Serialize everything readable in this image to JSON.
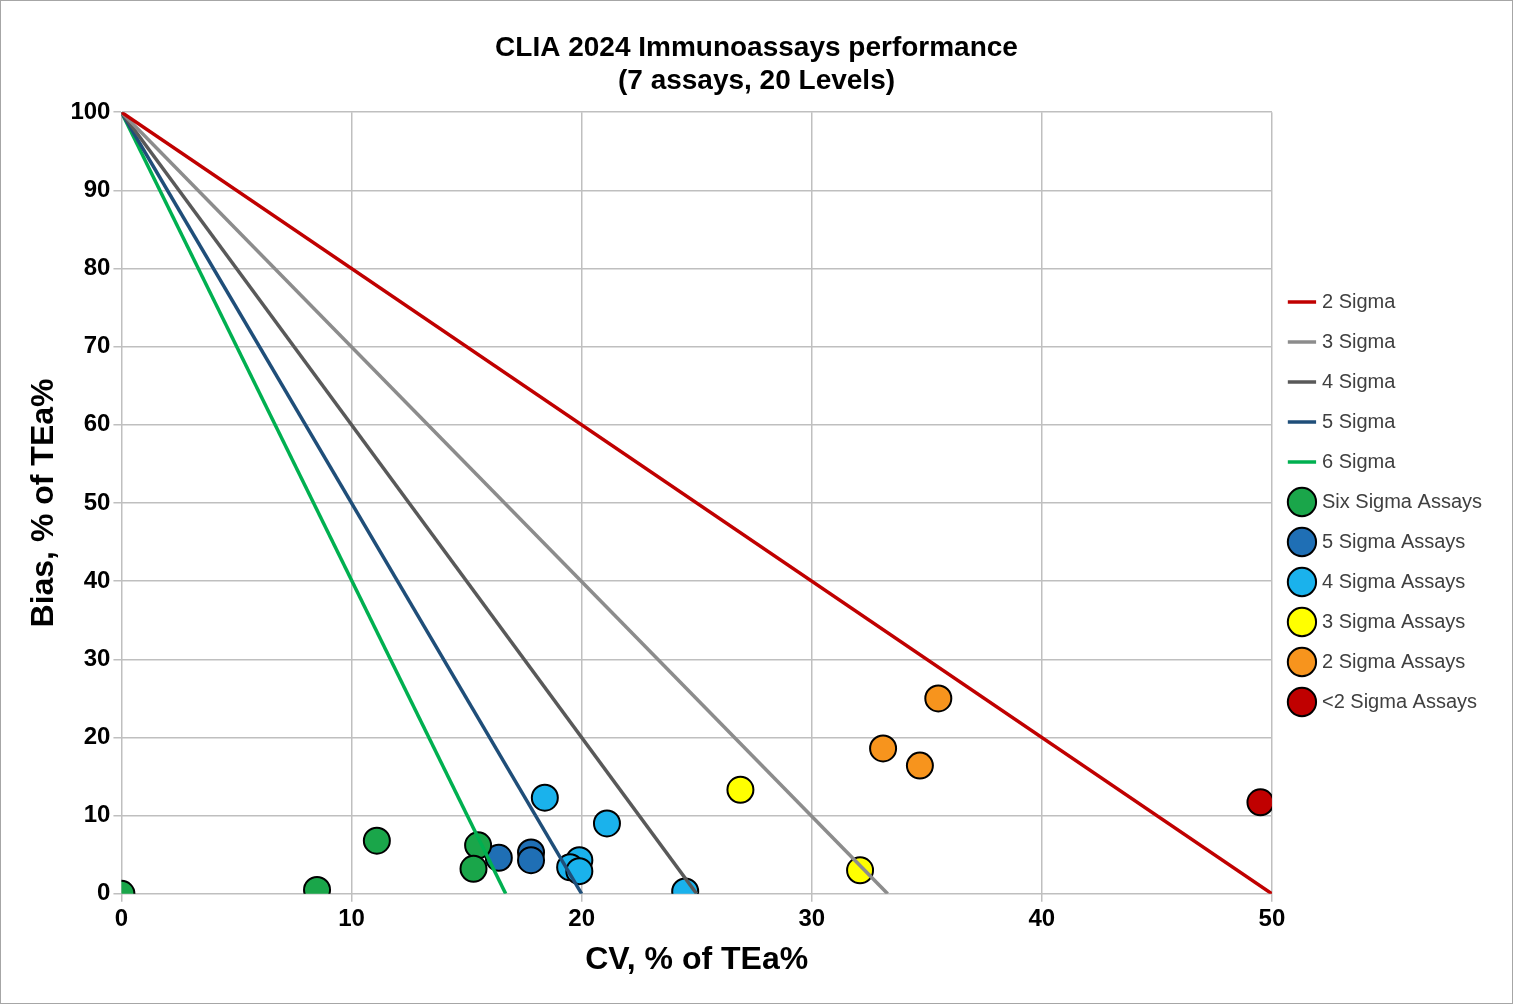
{
  "chart_data": {
    "type": "scatter",
    "title": [
      "CLIA 2024 Immunoassays performance",
      "(7 assays, 20 Levels)"
    ],
    "x_label": "CV, % of TEa%",
    "y_label": "Bias, % of TEa%",
    "xlim": [
      0,
      50
    ],
    "xticks": [
      0,
      10,
      20,
      30,
      40,
      50
    ],
    "ylim": [
      0,
      100
    ],
    "yticks": [
      0,
      10,
      20,
      30,
      40,
      50,
      60,
      70,
      80,
      90,
      100
    ],
    "grid": true,
    "legend": "right",
    "series": [
      {
        "name": "2 Sigma",
        "type": "line",
        "line_style": "solid",
        "color": "#c00000",
        "x": [
          0,
          50
        ],
        "values": [
          100,
          0
        ]
      },
      {
        "name": "3 Sigma",
        "type": "line",
        "line_style": "solid",
        "color": "#8c8c8c",
        "x": [
          0,
          33.3
        ],
        "values": [
          100,
          0
        ]
      },
      {
        "name": "4 Sigma",
        "type": "line",
        "line_style": "solid",
        "color": "#595959",
        "x": [
          0,
          25
        ],
        "values": [
          100,
          0
        ]
      },
      {
        "name": "5 Sigma",
        "type": "line",
        "line_style": "solid",
        "color": "#1f4e79",
        "x": [
          0,
          20
        ],
        "values": [
          100,
          0
        ]
      },
      {
        "name": "6 Sigma",
        "type": "line",
        "line_style": "solid",
        "color": "#00b050",
        "x": [
          0,
          16.7
        ],
        "values": [
          100,
          0
        ]
      },
      {
        "name": "Six Sigma Assays",
        "type": "scatter",
        "marker": "circle",
        "color": "#1aa64a",
        "x": [
          0,
          8.5,
          11.1,
          15.5,
          15.3
        ],
        "values": [
          0,
          0.5,
          6.8,
          6.2,
          3.2
        ]
      },
      {
        "name": "5 Sigma Assays",
        "type": "scatter",
        "marker": "circle",
        "color": "#1f6fb5",
        "x": [
          17.8,
          16.4,
          17.8
        ],
        "values": [
          5.3,
          4.6,
          4.3
        ]
      },
      {
        "name": "4 Sigma Assays",
        "type": "scatter",
        "marker": "circle",
        "color": "#1ab2ec",
        "x": [
          18.4,
          21.1,
          19.9,
          19.5,
          19.9,
          24.5
        ],
        "values": [
          12.3,
          9.0,
          4.3,
          3.4,
          2.9,
          0.3
        ]
      },
      {
        "name": "3 Sigma Assays",
        "type": "scatter",
        "marker": "circle",
        "color": "#ffff00",
        "x": [
          26.9,
          32.1
        ],
        "values": [
          13.3,
          3.0
        ]
      },
      {
        "name": "2 Sigma Assays",
        "type": "scatter",
        "marker": "circle",
        "color": "#f7941d",
        "x": [
          35.5,
          33.1,
          34.7
        ],
        "values": [
          25,
          18.6,
          16.4
        ]
      },
      {
        "name": "<2 Sigma Assays",
        "type": "scatter",
        "marker": "circle",
        "color": "#c00000",
        "x": [
          49.5
        ],
        "values": [
          11.7
        ]
      }
    ]
  }
}
